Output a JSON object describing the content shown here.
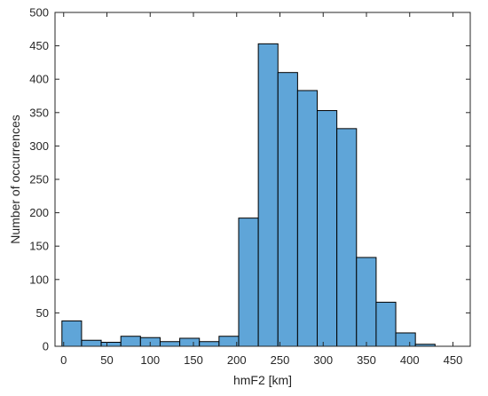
{
  "chart_data": {
    "type": "bar",
    "title": "",
    "xlabel": "hmF2 [km]",
    "ylabel": "Number of occurrences",
    "xlim": [
      -10,
      470
    ],
    "ylim": [
      0,
      500
    ],
    "x_ticks": [
      0,
      50,
      100,
      150,
      200,
      250,
      300,
      350,
      400,
      450
    ],
    "y_ticks": [
      0,
      50,
      100,
      150,
      200,
      250,
      300,
      350,
      400,
      450,
      500
    ],
    "bin_width": 22.7,
    "bins": [
      {
        "start": -2.0,
        "value": 38
      },
      {
        "start": 20.7,
        "value": 9
      },
      {
        "start": 43.4,
        "value": 6
      },
      {
        "start": 66.1,
        "value": 15
      },
      {
        "start": 88.8,
        "value": 13
      },
      {
        "start": 111.5,
        "value": 7
      },
      {
        "start": 134.2,
        "value": 12
      },
      {
        "start": 156.9,
        "value": 7
      },
      {
        "start": 179.6,
        "value": 15
      },
      {
        "start": 202.3,
        "value": 192
      },
      {
        "start": 225.0,
        "value": 453
      },
      {
        "start": 247.7,
        "value": 410
      },
      {
        "start": 270.4,
        "value": 383
      },
      {
        "start": 293.1,
        "value": 353
      },
      {
        "start": 315.8,
        "value": 326
      },
      {
        "start": 338.5,
        "value": 133
      },
      {
        "start": 361.2,
        "value": 66
      },
      {
        "start": 383.9,
        "value": 20
      },
      {
        "start": 406.6,
        "value": 3
      }
    ],
    "bar_color": "#5fa5d8",
    "grid": false,
    "box": true
  }
}
